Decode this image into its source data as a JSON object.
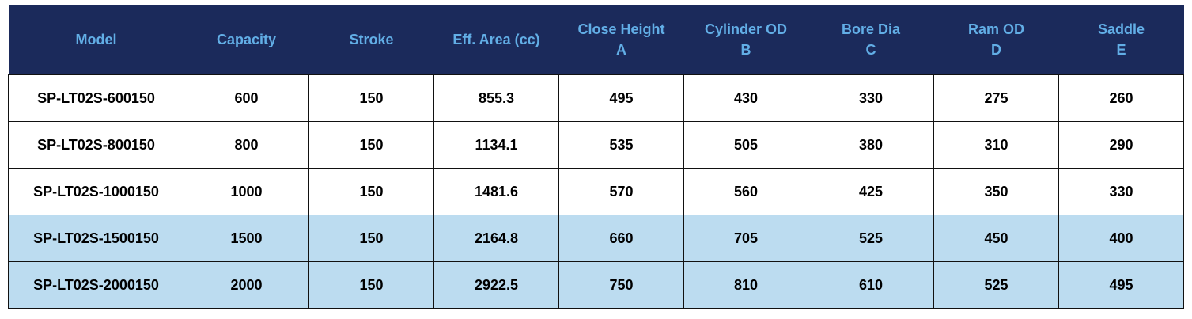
{
  "table": {
    "header": [
      [
        "Model"
      ],
      [
        "Capacity"
      ],
      [
        "Stroke"
      ],
      [
        "Eff. Area (cc)"
      ],
      [
        "Close Height",
        "A"
      ],
      [
        "Cylinder OD",
        "B"
      ],
      [
        "Bore Dia",
        "C"
      ],
      [
        "Ram OD",
        "D"
      ],
      [
        "Saddle",
        "E"
      ]
    ],
    "rows": [
      [
        "SP-LT02S-600150",
        "600",
        "150",
        "855.3",
        "495",
        "430",
        "330",
        "275",
        "260"
      ],
      [
        "SP-LT02S-800150",
        "800",
        "150",
        "1134.1",
        "535",
        "505",
        "380",
        "310",
        "290"
      ],
      [
        "SP-LT02S-1000150",
        "1000",
        "150",
        "1481.6",
        "570",
        "560",
        "425",
        "350",
        "330"
      ],
      [
        "SP-LT02S-1500150",
        "1500",
        "150",
        "2164.8",
        "660",
        "705",
        "525",
        "450",
        "400"
      ],
      [
        "SP-LT02S-2000150",
        "2000",
        "150",
        "2922.5",
        "750",
        "810",
        "610",
        "525",
        "495"
      ]
    ]
  }
}
